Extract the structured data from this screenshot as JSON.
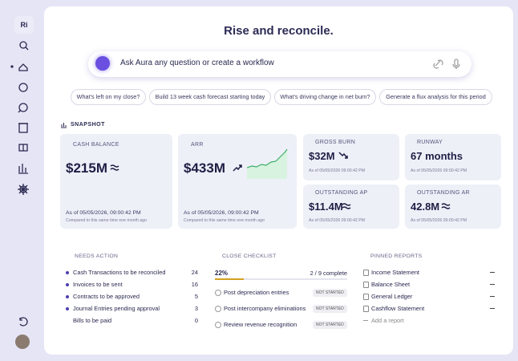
{
  "sidebar": {
    "logo": "Ri"
  },
  "header": {
    "title": "Rise and reconcile."
  },
  "search": {
    "placeholder": "Ask Aura any question or create a workflow"
  },
  "suggestions": [
    "What's left on my close?",
    "Build 13 week cash forecast starting today",
    "What's driving change in net burn?",
    "Generate a flux analysis for this period"
  ],
  "snapshot": {
    "title": "SNAPSHOT",
    "cards": [
      {
        "label": "CASH BALANCE",
        "value": "$215M",
        "as_of": "As of 05/05/2026, 09:00:42 PM",
        "note": "Compared to this same time one month ago"
      },
      {
        "label": "ARR",
        "value": "$433M",
        "as_of": "As of 05/05/2026, 09:00:42 PM",
        "note": "Compared to this same time one month ago"
      },
      {
        "label": "GROSS BURN",
        "value": "$32M",
        "as_of": "As of 05/05/2026 09:00:42 PM"
      },
      {
        "label": "RUNWAY",
        "value": "67 months",
        "as_of": "As of 05/05/2026 09:00:42 PM"
      },
      {
        "label": "OUTSTANDING AP",
        "value": "$11.4M",
        "as_of": "As of 05/05/2026 09:00:42 PM"
      },
      {
        "label": "OUTSTANDING AR",
        "value": "42.8M",
        "as_of": "As of 05/05/2026 09:00:42 PM"
      }
    ]
  },
  "needs_action": {
    "title": "NEEDS ACTION",
    "items": [
      {
        "label": "Cash Transactions to be reconciled",
        "count": 24
      },
      {
        "label": "Invoices to be sent",
        "count": 16
      },
      {
        "label": "Contracts to be approved",
        "count": 5
      },
      {
        "label": "Journal Entries pending approval",
        "count": 3
      },
      {
        "label": "Bills to be paid",
        "count": 0
      }
    ]
  },
  "close_checklist": {
    "title": "CLOSE CHECKLIST",
    "progress": "22%",
    "complete": "2 / 9 complete",
    "items": [
      {
        "label": "Post depreciation entries",
        "status": "NOT STARTED"
      },
      {
        "label": "Post intercompany eliminations",
        "status": "NOT STARTED"
      },
      {
        "label": "Review revenue recognition",
        "status": "NOT STARTED"
      }
    ]
  },
  "pinned_reports": {
    "title": "PINNED REPORTS",
    "items": [
      "Income Statement",
      "Balance Sheet",
      "General Ledger",
      "Cashflow Statement"
    ],
    "add": "Add a report"
  }
}
